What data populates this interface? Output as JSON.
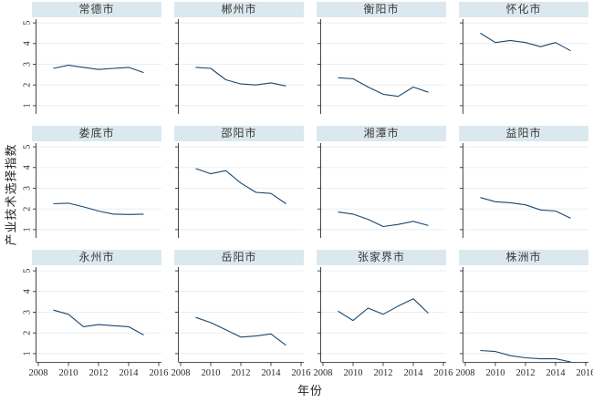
{
  "figure": {
    "ylabel": "产业技术选择指数",
    "xlabel": "年份",
    "colors": {
      "line": "#1a476f",
      "band": "#dce8ef",
      "grid": "#e9eff4",
      "axis": "#1a1a1a",
      "tick_text": "#2a2a2a"
    }
  },
  "chart_data": {
    "type": "line",
    "x": [
      2009,
      2010,
      2011,
      2012,
      2013,
      2014,
      2015
    ],
    "x_ticks": [
      2008,
      2010,
      2012,
      2014,
      2016
    ],
    "y_ticks": [
      1,
      2,
      3,
      4,
      5
    ],
    "xlim": [
      2008,
      2016
    ],
    "ylim": [
      0.6,
      5.18
    ],
    "grid": true,
    "legend": "none",
    "facet_layout": "3 rows x 4 cols",
    "xlabel": "年份",
    "ylabel": "产业技术选择指数",
    "series": [
      {
        "name": "常德市",
        "values": [
          2.8,
          2.95,
          2.85,
          2.75,
          2.8,
          2.85,
          2.6
        ]
      },
      {
        "name": "郴州市",
        "values": [
          2.85,
          2.8,
          2.25,
          2.05,
          2.0,
          2.1,
          1.95
        ]
      },
      {
        "name": "衡阳市",
        "values": [
          2.35,
          2.3,
          1.9,
          1.55,
          1.45,
          1.9,
          1.65
        ]
      },
      {
        "name": "怀化市",
        "values": [
          4.5,
          4.05,
          4.15,
          4.05,
          3.85,
          4.05,
          3.65
        ]
      },
      {
        "name": "娄底市",
        "values": [
          2.25,
          2.28,
          2.1,
          1.9,
          1.75,
          1.73,
          1.75
        ]
      },
      {
        "name": "邵阳市",
        "values": [
          3.95,
          3.7,
          3.85,
          3.25,
          2.8,
          2.75,
          2.25
        ]
      },
      {
        "name": "湘潭市",
        "values": [
          1.85,
          1.75,
          1.5,
          1.15,
          1.25,
          1.4,
          1.2
        ]
      },
      {
        "name": "益阳市",
        "values": [
          2.55,
          2.35,
          2.3,
          2.2,
          1.95,
          1.9,
          1.55
        ]
      },
      {
        "name": "永州市",
        "values": [
          3.1,
          2.9,
          2.3,
          2.4,
          2.35,
          2.3,
          1.9
        ]
      },
      {
        "name": "岳阳市",
        "values": [
          2.75,
          2.5,
          2.15,
          1.8,
          1.85,
          1.95,
          1.4
        ]
      },
      {
        "name": "张家界市",
        "values": [
          3.05,
          2.6,
          3.2,
          2.9,
          3.3,
          3.65,
          2.95
        ]
      },
      {
        "name": "株洲市",
        "values": [
          1.15,
          1.1,
          0.9,
          0.8,
          0.75,
          0.75,
          0.6
        ]
      }
    ]
  }
}
